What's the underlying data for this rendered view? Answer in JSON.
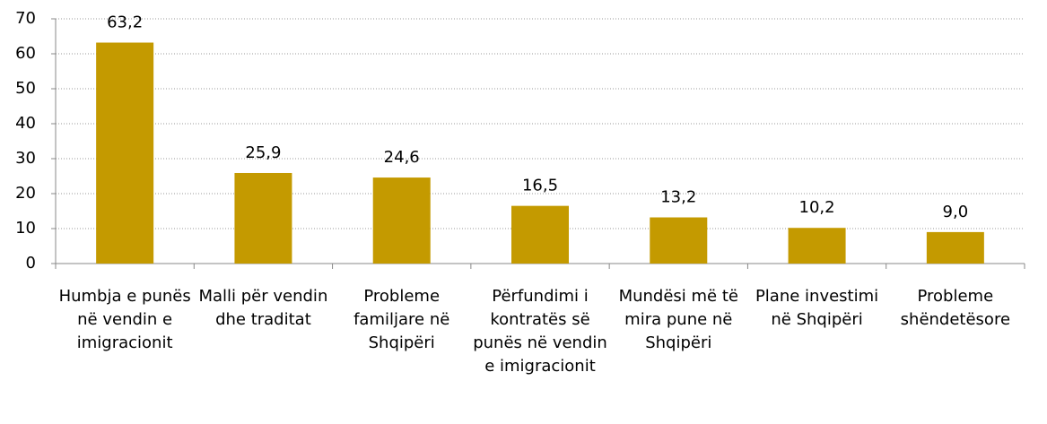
{
  "chart_data": {
    "type": "bar",
    "categories": [
      "Humbja e punës në vendin e imigracionit",
      "Malli për vendin dhe traditat",
      "Probleme familjare në Shqipëri",
      "Përfundimi i kontratës së punës në vendin e imigracionit",
      "Mundësi më të mira pune në Shqipëri",
      "Plane investimi në Shqipëri",
      "Probleme shëndetësore"
    ],
    "values": [
      63.2,
      25.9,
      24.6,
      16.5,
      13.2,
      10.2,
      9.0
    ],
    "value_labels": [
      "63,2",
      "25,9",
      "24,6",
      "16,5",
      "13,2",
      "10,2",
      "9,0"
    ],
    "color": "#c49a00",
    "ylim": [
      0,
      70
    ],
    "yticks": [
      0,
      10,
      20,
      30,
      40,
      50,
      60,
      70
    ],
    "grid": true
  }
}
